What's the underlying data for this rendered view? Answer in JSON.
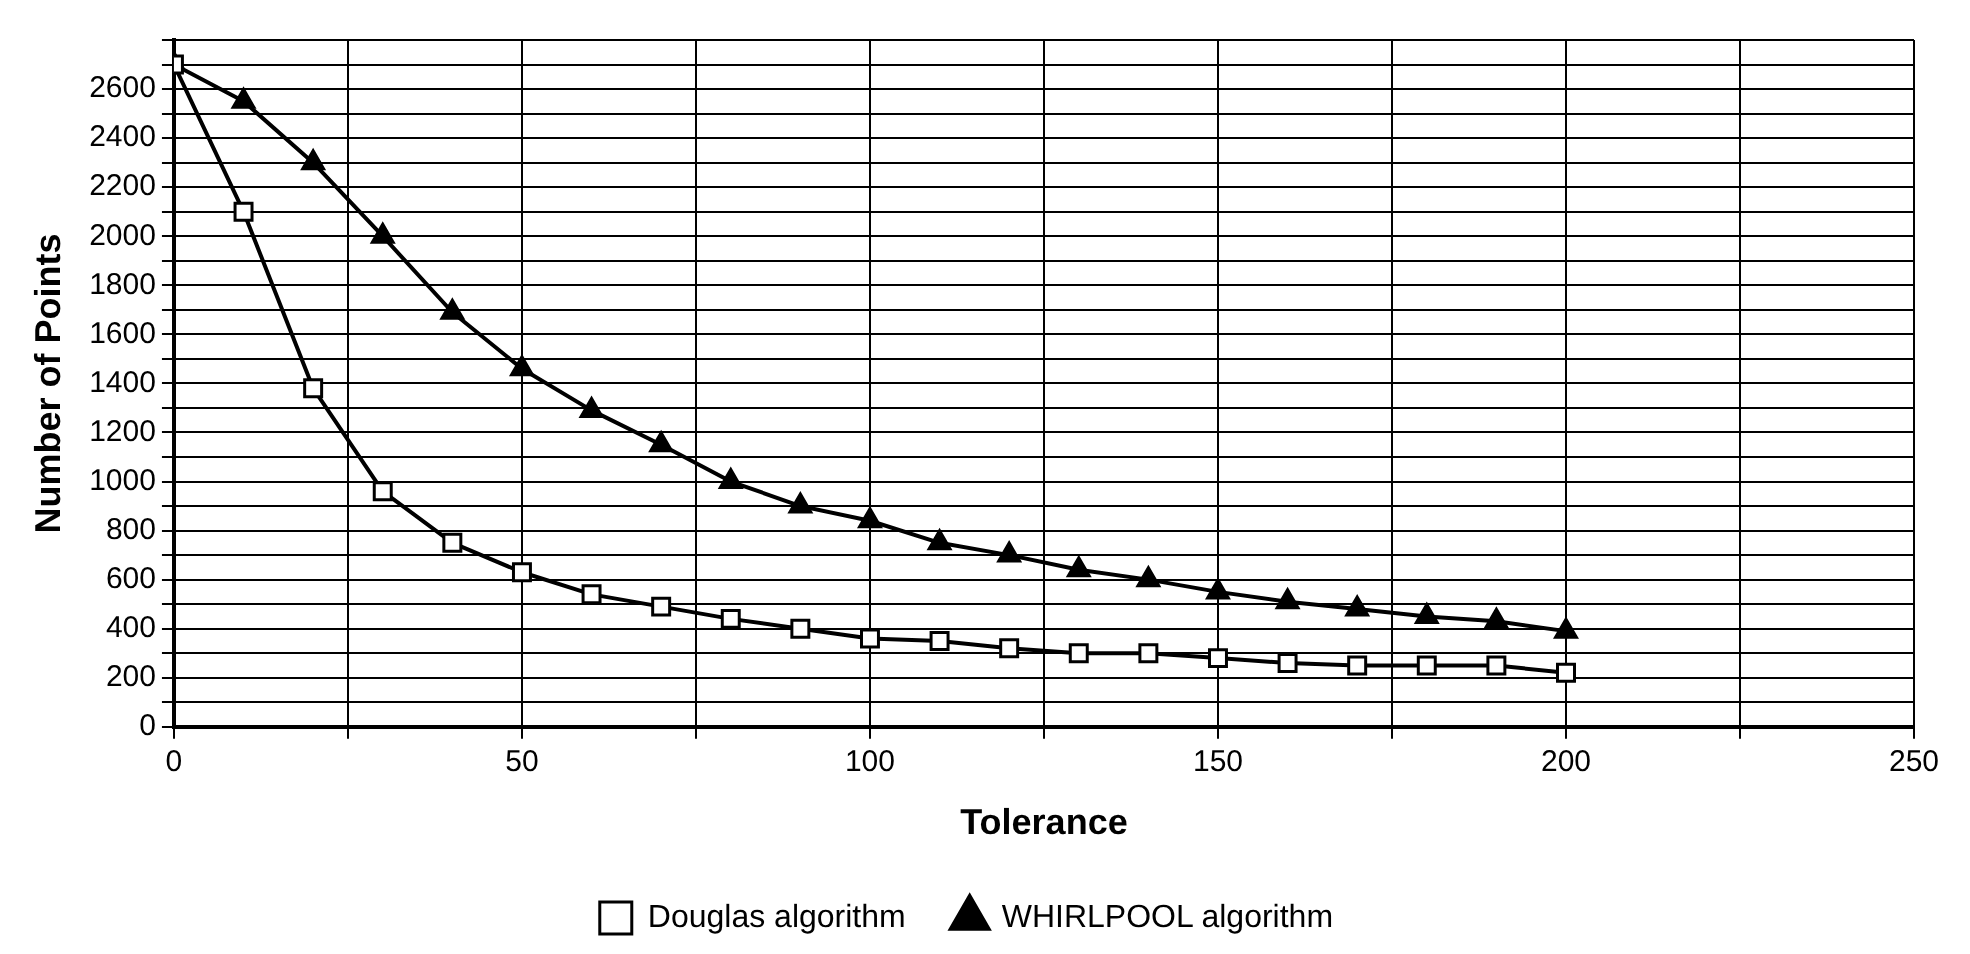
{
  "chart_data": {
    "type": "line",
    "xlabel": "Tolerance",
    "ylabel": "Number of Points",
    "xlim": [
      0,
      250
    ],
    "ylim": [
      0,
      2800
    ],
    "xticks": [
      0,
      {
        "value": 25,
        "label": null
      },
      50,
      {
        "value": 75,
        "label": null
      },
      100,
      {
        "value": 125,
        "label": null
      },
      150,
      {
        "value": 175,
        "label": null
      },
      200,
      {
        "value": 225,
        "label": null
      },
      250
    ],
    "yticks": [
      0,
      {
        "value": 100,
        "label": null
      },
      200,
      {
        "value": 300,
        "label": null
      },
      400,
      {
        "value": 500,
        "label": null
      },
      600,
      {
        "value": 700,
        "label": null
      },
      800,
      {
        "value": 900,
        "label": null
      },
      1000,
      {
        "value": 1100,
        "label": null
      },
      1200,
      {
        "value": 1300,
        "label": null
      },
      1400,
      {
        "value": 1500,
        "label": null
      },
      1600,
      {
        "value": 1700,
        "label": null
      },
      1800,
      {
        "value": 1900,
        "label": null
      },
      2000,
      {
        "value": 2100,
        "label": null
      },
      2200,
      {
        "value": 2300,
        "label": null
      },
      2400,
      {
        "value": 2500,
        "label": null
      },
      2600,
      {
        "value": 2700,
        "label": null
      },
      {
        "value": 2800,
        "label": null
      }
    ],
    "x": [
      0,
      10,
      20,
      30,
      40,
      50,
      60,
      70,
      80,
      90,
      100,
      110,
      120,
      130,
      140,
      150,
      160,
      170,
      180,
      190,
      200
    ],
    "series": [
      {
        "name": "Douglas algorithm",
        "color": "#000000",
        "marker": "square",
        "values": [
          2700,
          2100,
          1380,
          960,
          750,
          630,
          540,
          490,
          440,
          400,
          360,
          350,
          320,
          300,
          300,
          280,
          260,
          250,
          250,
          250,
          220
        ]
      },
      {
        "name": "WHIRLPOOL algorithm",
        "color": "#000000",
        "marker": "triangle",
        "values": [
          2700,
          2550,
          2300,
          2000,
          1690,
          1460,
          1290,
          1150,
          1000,
          900,
          840,
          750,
          700,
          640,
          600,
          550,
          510,
          480,
          450,
          430,
          390
        ]
      }
    ],
    "grid": true,
    "legend": "bottom",
    "line_style": "solid"
  }
}
